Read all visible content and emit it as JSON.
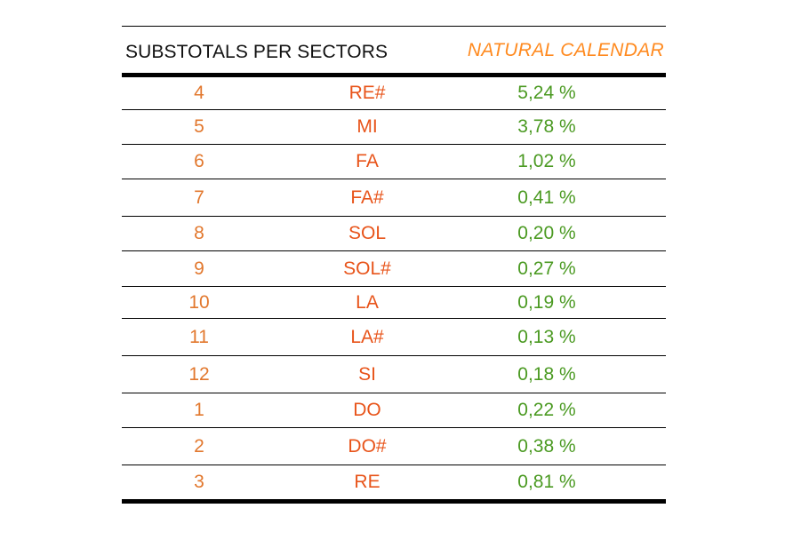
{
  "header": {
    "left_title": "SUBSTOTALS PER SECTORS",
    "right_title": "NATURAL CALENDAR"
  },
  "rows": [
    {
      "number": "4",
      "note": "RE#",
      "percent": "5,24 %"
    },
    {
      "number": "5",
      "note": "MI",
      "percent": "3,78 %"
    },
    {
      "number": "6",
      "note": "FA",
      "percent": "1,02 %"
    },
    {
      "number": "7",
      "note": "FA#",
      "percent": "0,41 %"
    },
    {
      "number": "8",
      "note": "SOL",
      "percent": "0,20 %"
    },
    {
      "number": "9",
      "note": "SOL#",
      "percent": "0,27 %"
    },
    {
      "number": "10",
      "note": "LA",
      "percent": "0,19 %"
    },
    {
      "number": "11",
      "note": "LA#",
      "percent": "0,13 %"
    },
    {
      "number": "12",
      "note": "SI",
      "percent": "0,18 %"
    },
    {
      "number": "1",
      "note": "DO",
      "percent": "0,22 %"
    },
    {
      "number": "2",
      "note": "DO#",
      "percent": "0,38 %"
    },
    {
      "number": "3",
      "note": "RE",
      "percent": "0,81 %"
    }
  ],
  "colors": {
    "number": "#e2782e",
    "note": "#e8541a",
    "percent": "#4b9a22",
    "header_accent": "#ff8a1f"
  }
}
